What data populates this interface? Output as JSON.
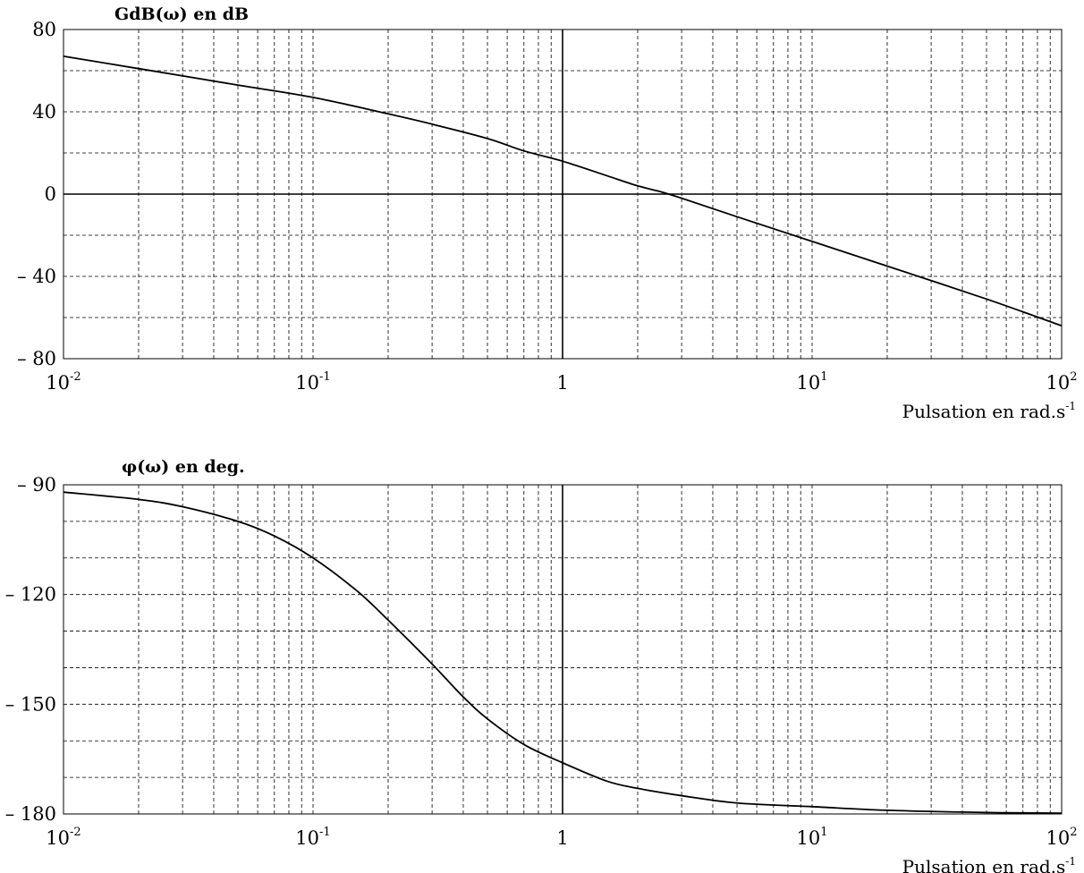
{
  "chart_data": [
    {
      "type": "line",
      "title": "GdB(ω) en dB",
      "xlabel": "Pulsation en rad.s",
      "xlabel_sup": "-1",
      "xscale": "log",
      "xlim": [
        0.01,
        100
      ],
      "ylim": [
        -80,
        80
      ],
      "grid": true,
      "x_ticks": [
        {
          "base": "10",
          "sup": "-2"
        },
        {
          "base": "10",
          "sup": "-1"
        },
        {
          "base": "1",
          "sup": ""
        },
        {
          "base": "10",
          "sup": "1"
        },
        {
          "base": "10",
          "sup": "2"
        }
      ],
      "y_ticks": [
        {
          "value": 80,
          "label": "80"
        },
        {
          "value": 40,
          "label": "40"
        },
        {
          "value": 0,
          "label": "0"
        },
        {
          "value": -40,
          "label": "– 40"
        },
        {
          "value": -80,
          "label": "– 80"
        }
      ],
      "y_minor_grid": [
        60,
        20,
        -20,
        -60
      ],
      "series": [
        {
          "x": [
            0.01,
            0.02,
            0.05,
            0.1,
            0.2,
            0.3,
            0.5,
            0.7,
            1,
            1.5,
            2,
            2.5,
            3,
            5,
            10,
            20,
            50,
            100
          ],
          "y": [
            67,
            61,
            53,
            47,
            39,
            34,
            27,
            21,
            16,
            9,
            4,
            1,
            -2,
            -11,
            -23,
            -35,
            -51,
            -64
          ]
        }
      ]
    },
    {
      "type": "line",
      "title": "φ(ω) en deg.",
      "xlabel": "Pulsation en rad.s",
      "xlabel_sup": "-1",
      "xscale": "log",
      "xlim": [
        0.01,
        100
      ],
      "ylim": [
        -180,
        -90
      ],
      "grid": true,
      "x_ticks": [
        {
          "base": "10",
          "sup": "-2"
        },
        {
          "base": "10",
          "sup": "-1"
        },
        {
          "base": "1",
          "sup": ""
        },
        {
          "base": "10",
          "sup": "1"
        },
        {
          "base": "10",
          "sup": "2"
        }
      ],
      "y_ticks": [
        {
          "value": -90,
          "label": "– 90"
        },
        {
          "value": -120,
          "label": "– 120"
        },
        {
          "value": -150,
          "label": "– 150"
        },
        {
          "value": -180,
          "label": "– 180"
        }
      ],
      "y_minor_grid": [
        -100,
        -110,
        -130,
        -140,
        -160,
        -170
      ],
      "series": [
        {
          "x": [
            0.01,
            0.02,
            0.03,
            0.05,
            0.07,
            0.1,
            0.15,
            0.2,
            0.3,
            0.4,
            0.5,
            0.7,
            1,
            1.5,
            2,
            3,
            5,
            10,
            20,
            50,
            100
          ],
          "y": [
            -92,
            -94,
            -96,
            -100,
            -104,
            -110,
            -119,
            -127,
            -139,
            -148,
            -154,
            -161,
            -166,
            -171,
            -173,
            -175,
            -177,
            -178,
            -179,
            -179.6,
            -179.8
          ]
        }
      ]
    }
  ]
}
